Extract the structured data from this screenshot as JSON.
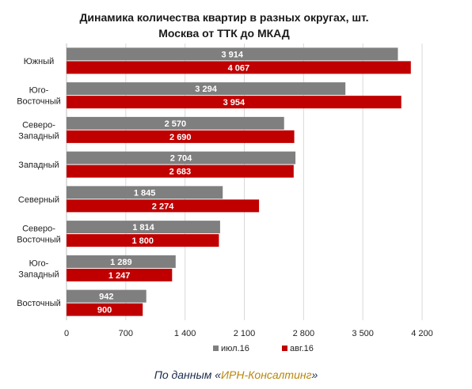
{
  "chart_data": {
    "type": "bar",
    "orientation": "horizontal",
    "title": "Динамика количества квартир в разных округах, шт.",
    "subtitle": "Москва от ТТК до МКАД",
    "categories": [
      [
        "Южный"
      ],
      [
        "Юго-",
        "Восточный"
      ],
      [
        "Северо-",
        "Западный"
      ],
      [
        "Западный"
      ],
      [
        "Северный"
      ],
      [
        "Северо-",
        "Восточный"
      ],
      [
        "Юго-",
        "Западный"
      ],
      [
        "Восточный"
      ]
    ],
    "series": [
      {
        "name": "июл.16",
        "color": "#7f7f7f",
        "values": [
          3914,
          3294,
          2570,
          2704,
          1845,
          1814,
          1289,
          942
        ],
        "labels": [
          "3 914",
          "3 294",
          "2 570",
          "2 704",
          "1 845",
          "1 814",
          "1 289",
          "942"
        ]
      },
      {
        "name": "авг.16",
        "color": "#c00000",
        "values": [
          4067,
          3954,
          2690,
          2683,
          2274,
          1800,
          1247,
          900
        ],
        "labels": [
          "4 067",
          "3 954",
          "2 690",
          "2 683",
          "2 274",
          "1 800",
          "1 247",
          "900"
        ]
      }
    ],
    "xlim": [
      0,
      4200
    ],
    "xticks": [
      0,
      700,
      1400,
      2100,
      2800,
      3500,
      4200
    ],
    "xtick_labels": [
      "0",
      "700",
      "1 400",
      "2 100",
      "2 800",
      "3 500",
      "4 200"
    ],
    "grid": true,
    "legend": "bottom"
  },
  "footer": {
    "source_prefix": "По данным «",
    "source_org": "ИРН-Консалтинг",
    "source_suffix": "»"
  }
}
